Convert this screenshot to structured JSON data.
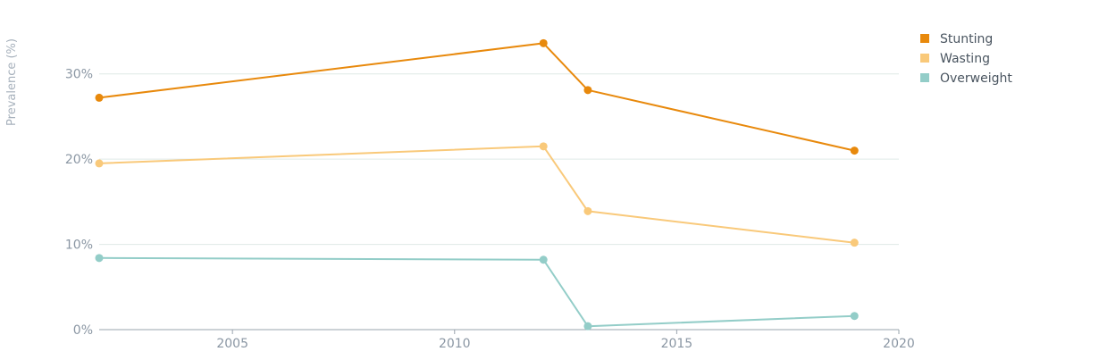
{
  "chart_data": {
    "type": "line",
    "title": "",
    "xlabel": "",
    "ylabel": "Prevalence (%)",
    "xlim": [
      2002,
      2020
    ],
    "ylim": [
      0,
      35
    ],
    "x_ticks": [
      2005,
      2010,
      2015,
      2020
    ],
    "y_ticks": [
      0,
      10,
      20,
      30
    ],
    "y_tick_labels": [
      "0%",
      "10%",
      "20%",
      "30%"
    ],
    "grid": "horizontal",
    "legend_position": "top-right",
    "series": [
      {
        "name": "Stunting",
        "color": "#e8890c",
        "points": [
          [
            2002,
            27.2
          ],
          [
            2012,
            33.6
          ],
          [
            2013,
            28.1
          ],
          [
            2019,
            21.0
          ]
        ]
      },
      {
        "name": "Wasting",
        "color": "#f9c97a",
        "points": [
          [
            2002,
            19.5
          ],
          [
            2012,
            21.5
          ],
          [
            2013,
            13.9
          ],
          [
            2019,
            10.2
          ]
        ]
      },
      {
        "name": "Overweight",
        "color": "#93cdc8",
        "points": [
          [
            2002,
            8.4
          ],
          [
            2012,
            8.2
          ],
          [
            2013,
            0.4
          ],
          [
            2019,
            1.6
          ]
        ]
      }
    ]
  }
}
